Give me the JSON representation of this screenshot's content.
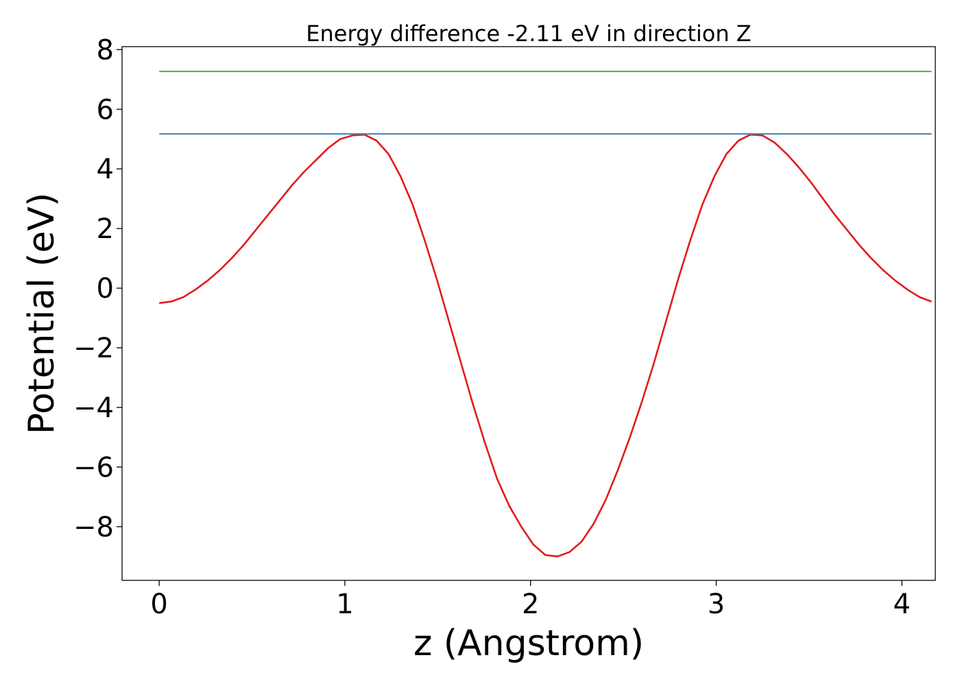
{
  "chart_data": {
    "type": "line",
    "title": "Energy difference -2.11 eV in direction Z",
    "xlabel": "z (Angstrom)",
    "ylabel": "Potential (eV)",
    "xlim": [
      -0.2,
      4.18
    ],
    "ylim": [
      -9.8,
      8.1
    ],
    "x_ticks": [
      0,
      1,
      2,
      3,
      4
    ],
    "x_tick_labels": [
      "0",
      "1",
      "2",
      "3",
      "4"
    ],
    "y_ticks": [
      8,
      6,
      4,
      2,
      0,
      -2,
      -4,
      -6,
      -8
    ],
    "y_tick_labels": [
      "8",
      "6",
      "4",
      "2",
      "0",
      "−2",
      "−4",
      "−6",
      "−8"
    ],
    "grid": false,
    "series": [
      {
        "color": "#e31a1c",
        "x": [
          0.0,
          0.065,
          0.13,
          0.195,
          0.26,
          0.325,
          0.39,
          0.455,
          0.52,
          0.585,
          0.65,
          0.715,
          0.78,
          0.845,
          0.91,
          0.975,
          1.04,
          1.105,
          1.17,
          1.235,
          1.3,
          1.365,
          1.43,
          1.495,
          1.56,
          1.625,
          1.69,
          1.755,
          1.82,
          1.885,
          1.95,
          2.015,
          2.08,
          2.145,
          2.21,
          2.275,
          2.34,
          2.405,
          2.47,
          2.535,
          2.6,
          2.665,
          2.73,
          2.795,
          2.86,
          2.925,
          2.99,
          3.055,
          3.12,
          3.185,
          3.25,
          3.315,
          3.38,
          3.445,
          3.51,
          3.575,
          3.64,
          3.705,
          3.77,
          3.835,
          3.9,
          3.965,
          4.03,
          4.095,
          4.16
        ],
        "y": [
          -0.5,
          -0.45,
          -0.3,
          -0.05,
          0.25,
          0.6,
          1.0,
          1.45,
          1.95,
          2.45,
          2.95,
          3.45,
          3.9,
          4.3,
          4.7,
          5.0,
          5.12,
          5.15,
          4.95,
          4.5,
          3.75,
          2.8,
          1.6,
          0.3,
          -1.1,
          -2.5,
          -3.9,
          -5.2,
          -6.4,
          -7.3,
          -8.0,
          -8.6,
          -8.95,
          -9.0,
          -8.85,
          -8.5,
          -7.9,
          -7.1,
          -6.1,
          -5.0,
          -3.8,
          -2.5,
          -1.1,
          0.3,
          1.6,
          2.8,
          3.75,
          4.5,
          4.95,
          5.15,
          5.12,
          4.88,
          4.5,
          4.05,
          3.55,
          3.0,
          2.45,
          1.95,
          1.45,
          1.0,
          0.6,
          0.25,
          -0.05,
          -0.3,
          -0.45
        ]
      },
      {
        "color": "#377eb8",
        "x": [
          0.0,
          4.16
        ],
        "y": [
          5.17,
          5.17
        ]
      },
      {
        "color": "#4daf4a",
        "x": [
          0.0,
          4.16
        ],
        "y": [
          7.27,
          7.27
        ]
      }
    ]
  }
}
